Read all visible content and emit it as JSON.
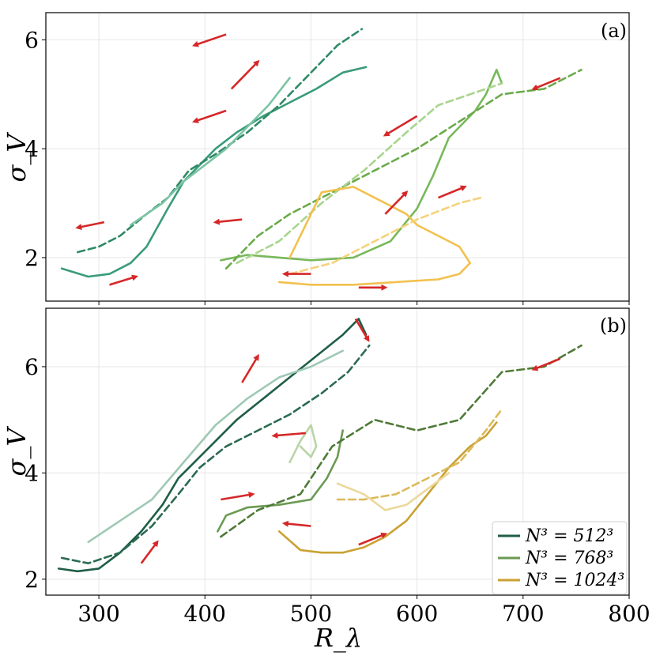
{
  "chart_data": {
    "type": "line",
    "xlabel": "R_λ",
    "ylabel": "σ_V",
    "xlim": [
      250,
      800
    ],
    "x_ticks": [
      "300",
      "400",
      "500",
      "600",
      "700",
      "800"
    ],
    "legend": {
      "placement": "bottom-right",
      "entries": [
        "N³ = 512³",
        "N³ = 768³",
        "N³ = 1024³"
      ]
    },
    "panels": [
      {
        "tag": "(a)",
        "ylim": [
          1.2,
          6.5
        ],
        "y_ticks": [
          "2",
          "4",
          "6"
        ],
        "series": [
          {
            "name": "N³ = 512³ (a) solid",
            "color": "#3a9b7a",
            "style": "solid",
            "x": [
              265,
              290,
              310,
              330,
              345,
              365,
              380,
              395,
              410,
              430,
              455,
              480,
              505,
              530,
              552
            ],
            "y": [
              1.8,
              1.65,
              1.7,
              1.9,
              2.2,
              2.9,
              3.4,
              3.7,
              4.0,
              4.3,
              4.6,
              4.85,
              5.1,
              5.4,
              5.5
            ]
          },
          {
            "name": "N³ = 512³ (a) dashed",
            "color": "#2f8a66",
            "style": "dashed",
            "x": [
              280,
              300,
              320,
              345,
              365,
              385,
              410,
              440,
              470,
              500,
              525,
              548
            ],
            "y": [
              2.1,
              2.2,
              2.4,
              2.8,
              3.1,
              3.6,
              3.9,
              4.3,
              4.8,
              5.4,
              5.9,
              6.2
            ]
          },
          {
            "name": "N³ = 512³ (a) light",
            "color": "#7cc4a4",
            "style": "solid",
            "x": [
              330,
              345,
              360,
              380,
              400,
              420,
              440,
              460,
              480
            ],
            "y": [
              2.6,
              2.8,
              3.0,
              3.4,
              3.7,
              4.0,
              4.4,
              4.8,
              5.3
            ]
          },
          {
            "name": "N³ = 768³ (a) solid",
            "color": "#78b85a",
            "style": "solid",
            "x": [
              415,
              440,
              470,
              500,
              540,
              575,
              600,
              615,
              630,
              655,
              665,
              675,
              680
            ],
            "y": [
              1.95,
              2.05,
              2.0,
              1.95,
              2.0,
              2.3,
              2.9,
              3.5,
              4.2,
              4.7,
              5.0,
              5.45,
              5.2
            ]
          },
          {
            "name": "N³ = 768³ (a) dashed",
            "color": "#6aaa4a",
            "style": "dashed",
            "x": [
              420,
              450,
              480,
              520,
              560,
              600,
              640,
              680,
              720,
              755
            ],
            "y": [
              1.8,
              2.4,
              2.8,
              3.2,
              3.6,
              4.0,
              4.5,
              5.0,
              5.1,
              5.45
            ]
          },
          {
            "name": "N³ = 768³ (a) light dashed",
            "color": "#a9d48e",
            "style": "dashed",
            "x": [
              430,
              470,
              510,
              550,
              590,
              620,
              650,
              680
            ],
            "y": [
              1.9,
              2.3,
              3.0,
              3.6,
              4.3,
              4.8,
              5.0,
              5.2
            ]
          },
          {
            "name": "N³ = 1024³ (a) solid",
            "color": "#f2c14e",
            "style": "solid",
            "x": [
              470,
              500,
              540,
              580,
              620,
              640,
              650,
              640,
              620,
              600,
              590,
              570,
              540,
              510,
              480
            ],
            "y": [
              1.55,
              1.5,
              1.5,
              1.55,
              1.6,
              1.7,
              1.9,
              2.2,
              2.4,
              2.6,
              2.8,
              3.0,
              3.3,
              3.2,
              2.0
            ]
          },
          {
            "name": "N³ = 1024³ (a) dashed",
            "color": "#f5d27a",
            "style": "dashed",
            "x": [
              480,
              520,
              560,
              600,
              640,
              660
            ],
            "y": [
              1.7,
              1.9,
              2.3,
              2.7,
              3.0,
              3.1
            ]
          }
        ],
        "annotations": [
          {
            "type": "arrow",
            "x": 310,
            "y": 1.5,
            "dx": 25,
            "dy": 0.15
          },
          {
            "type": "arrow",
            "x": 305,
            "y": 2.65,
            "dx": -25,
            "dy": -0.1
          },
          {
            "type": "arrow",
            "x": 425,
            "y": 5.1,
            "dx": 25,
            "dy": 0.5
          },
          {
            "type": "arrow",
            "x": 420,
            "y": 6.1,
            "dx": -30,
            "dy": -0.2
          },
          {
            "type": "arrow",
            "x": 420,
            "y": 4.7,
            "dx": -30,
            "dy": -0.2
          },
          {
            "type": "arrow",
            "x": 735,
            "y": 5.3,
            "dx": -25,
            "dy": -0.2
          },
          {
            "type": "arrow",
            "x": 600,
            "y": 4.6,
            "dx": -30,
            "dy": -0.35
          },
          {
            "type": "arrow",
            "x": 435,
            "y": 2.7,
            "dx": -25,
            "dy": -0.05
          },
          {
            "type": "arrow",
            "x": 570,
            "y": 2.8,
            "dx": 20,
            "dy": 0.4
          },
          {
            "type": "arrow",
            "x": 620,
            "y": 3.1,
            "dx": 25,
            "dy": 0.2
          },
          {
            "type": "arrow",
            "x": 500,
            "y": 1.7,
            "dx": -25,
            "dy": 0
          },
          {
            "type": "arrow",
            "x": 545,
            "y": 1.45,
            "dx": 25,
            "dy": 0
          }
        ]
      },
      {
        "tag": "(b)",
        "ylim": [
          1.7,
          7.1
        ],
        "y_ticks": [
          "2",
          "4",
          "6"
        ],
        "series": [
          {
            "name": "N³ = 512³ (b) solid",
            "color": "#1f5e46",
            "style": "solid",
            "x": [
              262,
              280,
              300,
              320,
              340,
              360,
              375,
              390,
              410,
              430,
              455,
              480,
              505,
              530,
              545,
              552
            ],
            "y": [
              2.2,
              2.15,
              2.2,
              2.5,
              2.9,
              3.4,
              3.9,
              4.2,
              4.6,
              5.0,
              5.4,
              5.8,
              6.2,
              6.6,
              6.9,
              6.6
            ]
          },
          {
            "name": "N³ = 512³ (b) dashed",
            "color": "#2c6b52",
            "style": "dashed",
            "x": [
              265,
              290,
              320,
              350,
              375,
              395,
              420,
              450,
              480,
              510,
              535,
              555
            ],
            "y": [
              2.4,
              2.3,
              2.5,
              3.0,
              3.6,
              4.1,
              4.5,
              4.8,
              5.1,
              5.5,
              5.9,
              6.4
            ]
          },
          {
            "name": "N³ = 512³ (b) light",
            "color": "#9fc9b4",
            "style": "solid",
            "x": [
              290,
              320,
              350,
              380,
              410,
              440,
              470,
              500,
              530
            ],
            "y": [
              2.7,
              3.1,
              3.5,
              4.2,
              4.9,
              5.4,
              5.8,
              6.0,
              6.3
            ]
          },
          {
            "name": "N³ = 768³ (b) solid",
            "color": "#6a9a52",
            "style": "solid",
            "x": [
              412,
              420,
              440,
              470,
              500,
              515,
              525,
              530
            ],
            "y": [
              2.9,
              3.2,
              3.35,
              3.4,
              3.5,
              3.9,
              4.3,
              4.8
            ]
          },
          {
            "name": "N³ = 768³ (b) dashed",
            "color": "#4f7a38",
            "style": "dashed",
            "x": [
              415,
              450,
              490,
              520,
              560,
              600,
              640,
              680,
              720,
              755
            ],
            "y": [
              2.8,
              3.3,
              3.6,
              4.5,
              5.0,
              4.8,
              5.0,
              5.9,
              6.0,
              6.4
            ]
          },
          {
            "name": "N³ = 768³ (b) light",
            "color": "#b9d4a6",
            "style": "solid",
            "x": [
              480,
              490,
              500,
              505,
              500,
              490
            ],
            "y": [
              4.2,
              4.6,
              4.9,
              4.5,
              4.3,
              4.5
            ]
          },
          {
            "name": "N³ = 1024³ (b) solid",
            "color": "#c9a233",
            "style": "solid",
            "x": [
              470,
              490,
              510,
              530,
              550,
              570,
              590,
              610,
              630,
              650,
              665,
              675
            ],
            "y": [
              2.9,
              2.55,
              2.5,
              2.5,
              2.6,
              2.8,
              3.1,
              3.6,
              4.1,
              4.5,
              4.7,
              4.95
            ]
          },
          {
            "name": "N³ = 1024³ (b) dashed",
            "color": "#ddb95a",
            "style": "dashed",
            "x": [
              525,
              550,
              580,
              610,
              640,
              665,
              680
            ],
            "y": [
              3.5,
              3.5,
              3.6,
              3.9,
              4.2,
              4.8,
              5.2
            ]
          },
          {
            "name": "N³ = 1024³ (b) light",
            "color": "#ecd89c",
            "style": "solid",
            "x": [
              525,
              550,
              570,
              590,
              610,
              630
            ],
            "y": [
              3.8,
              3.6,
              3.3,
              3.4,
              3.7,
              4.0
            ]
          }
        ],
        "annotations": [
          {
            "type": "arrow",
            "x": 340,
            "y": 2.3,
            "dx": 15,
            "dy": 0.4
          },
          {
            "type": "arrow",
            "x": 435,
            "y": 5.7,
            "dx": 15,
            "dy": 0.5
          },
          {
            "type": "arrow",
            "x": 542,
            "y": 6.9,
            "dx": 12,
            "dy": -0.4
          },
          {
            "type": "arrow",
            "x": 495,
            "y": 4.75,
            "dx": -30,
            "dy": -0.05
          },
          {
            "type": "arrow",
            "x": 415,
            "y": 3.5,
            "dx": 30,
            "dy": 0.1
          },
          {
            "type": "arrow",
            "x": 735,
            "y": 6.15,
            "dx": -25,
            "dy": -0.2
          },
          {
            "type": "arrow",
            "x": 500,
            "y": 3.0,
            "dx": -25,
            "dy": 0.05
          },
          {
            "type": "arrow",
            "x": 545,
            "y": 2.65,
            "dx": 25,
            "dy": 0.2
          }
        ]
      }
    ]
  },
  "legend_colors": [
    "#1f5e46",
    "#6a9a52",
    "#c9a233"
  ],
  "arrow_color": "#d62728"
}
